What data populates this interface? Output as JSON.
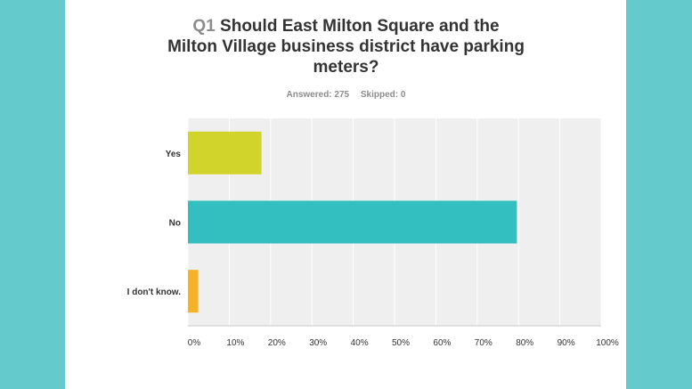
{
  "question": {
    "number": "Q1",
    "title_lines": [
      "Should East Milton Square and the",
      "Milton Village business district have parking",
      "meters?"
    ]
  },
  "stats": {
    "answered": "Answered: 275",
    "skipped": "Skipped: 0"
  },
  "colors": {
    "background": "#64cacb",
    "panel": "#ffffff",
    "plot_area": "#efefef"
  },
  "chart_data": {
    "type": "bar",
    "orientation": "horizontal",
    "categories": [
      "Yes",
      "No",
      "I don't know."
    ],
    "values": [
      17.8,
      79.6,
      2.5
    ],
    "colors": [
      "#d0d42b",
      "#33bec0",
      "#f4b327"
    ],
    "xlim": [
      0,
      100
    ],
    "x_ticks": [
      "0%",
      "10%",
      "20%",
      "30%",
      "40%",
      "50%",
      "60%",
      "70%",
      "80%",
      "90%",
      "100%"
    ],
    "grid": true
  }
}
